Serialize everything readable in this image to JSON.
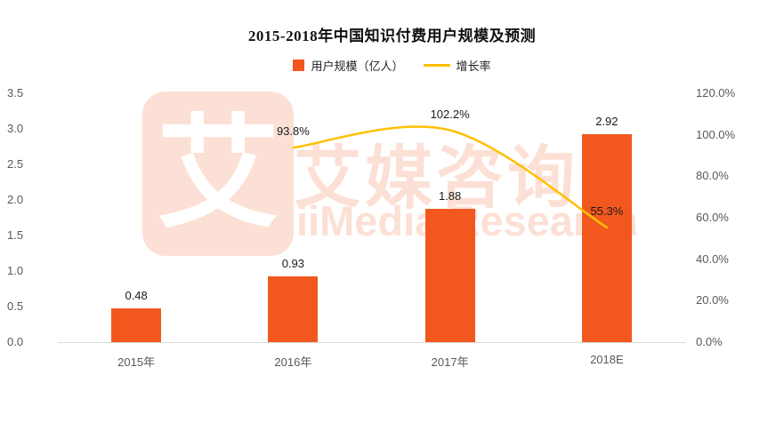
{
  "title": "2015-2018年中国知识付费用户规模及预测",
  "legend": {
    "bar_label": "用户规模（亿人）",
    "line_label": "增长率"
  },
  "watermark": {
    "logo_glyph": "艾",
    "cn": "艾媒咨询",
    "en": "iiMedia Research"
  },
  "colors": {
    "bar": "#F2581E",
    "line": "#FFC000",
    "axis_text": "#595959",
    "value_text": "#1A1A1A",
    "watermark": "#F2581E"
  },
  "chart_data": {
    "type": "bar",
    "subtype": "bar+line combo, dual y-axis",
    "title": "2015-2018年中国知识付费用户规模及预测",
    "categories": [
      "2015年",
      "2016年",
      "2017年",
      "2018E"
    ],
    "series": [
      {
        "name": "用户规模（亿人）",
        "type": "bar",
        "axis": "left",
        "values": [
          0.48,
          0.93,
          1.88,
          2.92
        ],
        "labels": [
          "0.48",
          "0.93",
          "1.88",
          "2.92"
        ]
      },
      {
        "name": "增长率",
        "type": "line",
        "axis": "right",
        "values": [
          null,
          93.8,
          102.2,
          55.3
        ],
        "labels": [
          "93.8%",
          "102.2%",
          "55.3%"
        ]
      }
    ],
    "left_axis": {
      "min": 0.0,
      "max": 3.5,
      "step": 0.5,
      "ticks": [
        "3.5",
        "3.0",
        "2.5",
        "2.0",
        "1.5",
        "1.0",
        "0.5",
        "0.0"
      ]
    },
    "right_axis": {
      "min": 0,
      "max": 120,
      "step": 20,
      "ticks": [
        "120.0%",
        "100.0%",
        "80.0%",
        "60.0%",
        "40.0%",
        "20.0%",
        "0.0%"
      ]
    },
    "grid": false,
    "legend_position": "top"
  }
}
